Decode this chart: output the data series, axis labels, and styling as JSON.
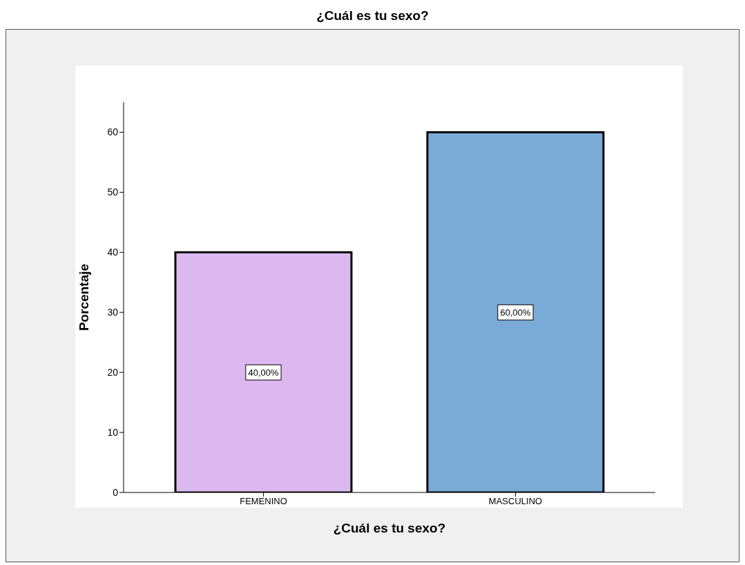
{
  "chart_data": {
    "type": "bar",
    "title": "¿Cuál es tu sexo?",
    "xlabel": "¿Cuál es tu sexo?",
    "ylabel": "Porcentaje",
    "categories": [
      "FEMENINO",
      "MASCULINO"
    ],
    "values": [
      40,
      60
    ],
    "colors": [
      "#dcb8f0",
      "#7aaad6"
    ],
    "value_labels": [
      "40,00%",
      "60,00%"
    ],
    "ylim": [
      0,
      65
    ],
    "yticks": [
      0,
      10,
      20,
      30,
      40,
      50,
      60
    ],
    "grid": false
  }
}
